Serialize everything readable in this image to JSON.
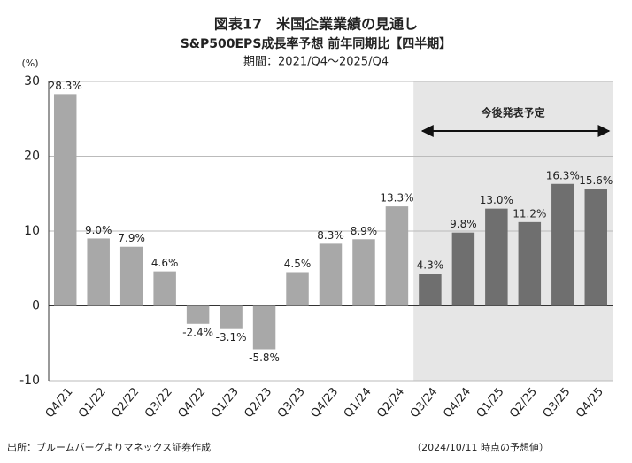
{
  "chart_data": {
    "type": "bar",
    "title": "図表17　米国企業業績の見通し",
    "subtitle": "S&P500EPS成長率予想 前年同期比【四半期】",
    "period": "期間：2021/Q4～2025/Q4",
    "y_unit": "(%)",
    "categories": [
      "Q4/21",
      "Q1/22",
      "Q2/22",
      "Q3/22",
      "Q4/22",
      "Q1/23",
      "Q2/23",
      "Q3/23",
      "Q4/23",
      "Q1/24",
      "Q2/24",
      "Q3/24",
      "Q4/24",
      "Q1/25",
      "Q2/25",
      "Q3/25",
      "Q4/25"
    ],
    "values": [
      28.3,
      9.0,
      7.9,
      4.6,
      -2.4,
      -3.1,
      -5.8,
      4.5,
      8.3,
      8.9,
      13.3,
      4.3,
      9.8,
      13.0,
      11.2,
      16.3,
      15.6
    ],
    "value_labels": [
      "28.3%",
      "9.0%",
      "7.9%",
      "4.6%",
      "-2.4%",
      "-3.1%",
      "-5.8%",
      "4.5%",
      "8.3%",
      "8.9%",
      "13.3%",
      "4.3%",
      "9.8%",
      "13.0%",
      "11.2%",
      "16.3%",
      "15.6%"
    ],
    "colors": [
      "#a8a8a8",
      "#a8a8a8",
      "#a8a8a8",
      "#a8a8a8",
      "#a8a8a8",
      "#a8a8a8",
      "#a8a8a8",
      "#a8a8a8",
      "#a8a8a8",
      "#a8a8a8",
      "#a8a8a8",
      "#6f6f6f",
      "#6f6f6f",
      "#6f6f6f",
      "#6f6f6f",
      "#6f6f6f",
      "#6f6f6f"
    ],
    "highlight_region": {
      "from": "Q3/24",
      "label": "今後発表予定",
      "color": "#e6e6e6"
    },
    "ylim": [
      -10,
      30
    ],
    "yticks": [
      -10,
      0,
      10,
      20,
      30
    ],
    "grid": true,
    "source": "出所：ブルームバーグよりマネックス証券作成",
    "note": "（2024/10/11 時点の予想値）"
  }
}
